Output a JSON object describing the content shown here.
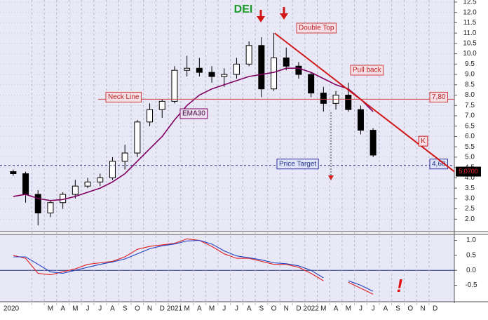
{
  "chart_data": {
    "type": "candlestick",
    "title": "DEI",
    "x": [
      "2020-01",
      "2020-02",
      "2020-03",
      "2020-04",
      "2020-05",
      "2020-06",
      "2020-07",
      "2020-08",
      "2020-09",
      "2020-10",
      "2020-11",
      "2020-12",
      "2021-01",
      "2021-02",
      "2021-03",
      "2021-04",
      "2021-05",
      "2021-06",
      "2021-07",
      "2021-08",
      "2021-09",
      "2021-10",
      "2021-11",
      "2021-12",
      "2022-01",
      "2022-02",
      "2022-03",
      "2022-04",
      "2022-05",
      "2022-06"
    ],
    "open": [
      4.3,
      4.2,
      3.2,
      2.3,
      2.8,
      3.2,
      3.6,
      3.8,
      4.0,
      4.8,
      5.2,
      6.7,
      7.3,
      7.7,
      9.2,
      9.3,
      9.1,
      8.9,
      9.0,
      9.5,
      10.4,
      8.3,
      9.8,
      9.4,
      9.0,
      8.1,
      7.6,
      8.0,
      7.3,
      6.3
    ],
    "high": [
      4.4,
      4.3,
      3.4,
      2.9,
      3.3,
      3.9,
      4.0,
      4.2,
      5.0,
      5.6,
      6.8,
      7.6,
      7.8,
      9.4,
      9.9,
      9.8,
      9.4,
      9.3,
      9.8,
      10.6,
      10.8,
      11.0,
      10.3,
      9.6,
      9.1,
      8.4,
      8.2,
      8.6,
      7.5,
      6.4
    ],
    "low": [
      4.1,
      2.8,
      1.7,
      2.1,
      2.5,
      3.0,
      3.5,
      3.6,
      3.9,
      4.4,
      5.0,
      6.5,
      6.9,
      7.6,
      8.9,
      8.9,
      8.6,
      8.4,
      8.8,
      9.4,
      7.9,
      8.2,
      9.2,
      8.8,
      7.9,
      7.2,
      7.3,
      7.2,
      6.1,
      5.0
    ],
    "close": [
      4.2,
      3.2,
      2.3,
      2.8,
      3.2,
      3.6,
      3.8,
      4.0,
      4.8,
      5.2,
      6.7,
      7.3,
      7.7,
      9.2,
      9.3,
      9.1,
      8.9,
      9.0,
      9.5,
      10.4,
      8.3,
      9.8,
      9.4,
      9.0,
      8.1,
      7.6,
      8.0,
      7.3,
      6.3,
      5.1
    ],
    "up_color": "#ffffff",
    "down_color": "#000000",
    "series": [
      {
        "name": "EMA30",
        "color": "#800060",
        "values": [
          3.1,
          3.2,
          3.0,
          2.9,
          2.95,
          3.1,
          3.3,
          3.5,
          3.8,
          4.2,
          4.8,
          5.4,
          6.0,
          6.8,
          7.5,
          8.0,
          8.3,
          8.5,
          8.7,
          8.9,
          9.0,
          9.1,
          9.3,
          9.3,
          9.1,
          8.8,
          8.5,
          8.3,
          7.8,
          7.2
        ]
      },
      {
        "color": "#e02020",
        "axis": "y2",
        "values": [
          0.5,
          0.4,
          -0.1,
          -0.15,
          -0.05,
          0.05,
          0.2,
          0.25,
          0.3,
          0.45,
          0.7,
          0.8,
          0.85,
          0.9,
          1.05,
          1.0,
          0.8,
          0.55,
          0.4,
          0.4,
          0.3,
          0.2,
          0.2,
          0.1,
          -0.1,
          -0.35,
          null,
          -0.4,
          -0.6,
          -0.8
        ]
      },
      {
        "color": "#2040c0",
        "axis": "y2",
        "values": [
          0.45,
          0.45,
          0.2,
          -0.05,
          -0.1,
          0,
          0.1,
          0.2,
          0.28,
          0.38,
          0.55,
          0.72,
          0.82,
          0.88,
          0.98,
          1.0,
          0.88,
          0.65,
          0.48,
          0.42,
          0.35,
          0.25,
          0.22,
          0.15,
          0,
          -0.25,
          null,
          -0.35,
          -0.5,
          -0.7
        ]
      }
    ],
    "ylim": [
      1.4,
      12.6
    ],
    "yticks": [
      12.5,
      {
        "value": 12,
        "label": "12.0"
      },
      11.5,
      {
        "value": 11,
        "label": "11.0"
      },
      10.5,
      {
        "value": 10,
        "label": "10.0"
      },
      9.5,
      {
        "value": 9,
        "label": "9.0"
      },
      8.5,
      {
        "value": 8,
        "label": "8.0"
      },
      7.5,
      {
        "value": 7,
        "label": "7.0"
      },
      6.5,
      {
        "value": 6,
        "label": "6.0"
      },
      5.5,
      {
        "value": 5,
        "label": "5.0"
      },
      4.5,
      {
        "value": 4,
        "label": "4.0"
      },
      3.5,
      {
        "value": 3,
        "label": "3.0"
      },
      2.5,
      {
        "value": 2,
        "label": "2.0"
      }
    ],
    "y2lim": [
      -1.05,
      1.2
    ],
    "y2ticks": [
      {
        "value": 1,
        "label": "1.0"
      },
      0.5,
      {
        "value": 0,
        "label": "0.0"
      },
      -0.5
    ],
    "xtick_labels": [
      "2020",
      "M",
      "A",
      "M",
      "J",
      "J",
      "A",
      "S",
      "O",
      "N",
      "D",
      "2021",
      "M",
      "A",
      "M",
      "J",
      "J",
      "A",
      "S",
      "O",
      "N",
      "D",
      "2022",
      "M",
      "A",
      "M",
      "J",
      "J",
      "A",
      "S",
      "O",
      "N",
      "D"
    ],
    "neck_line": {
      "text": "Neck Line",
      "value": 7.8,
      "label": "7,80"
    },
    "price_target": {
      "text": "Price Target",
      "value": 4.6,
      "label": "4,60"
    },
    "trend_line": {
      "start": 11.0,
      "end": 4.3,
      "text": "K"
    },
    "last_price": {
      "value": 5.07,
      "label": "5.0700"
    },
    "annotations": [
      "Double Top",
      "Pull back",
      "EMA30"
    ],
    "exclamation": "!",
    "grid": true
  }
}
